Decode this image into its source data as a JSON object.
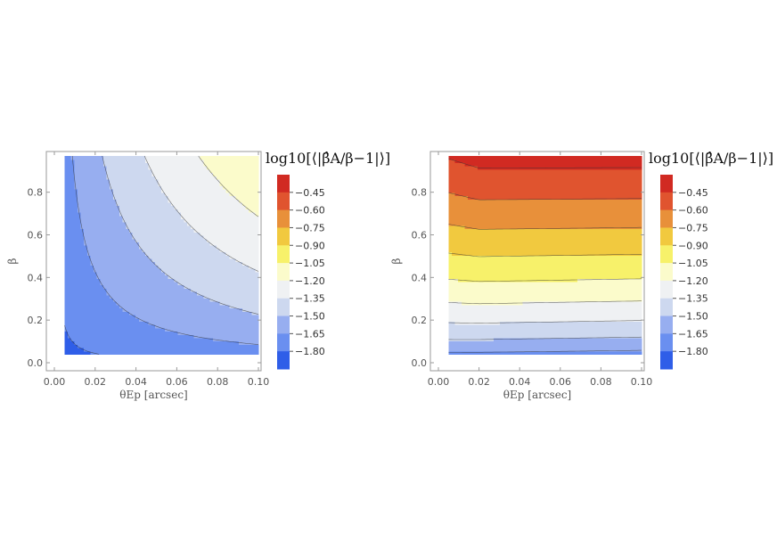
{
  "chart_data": [
    {
      "type": "contour",
      "panel": "left",
      "xlabel": "θEp [arcsec]",
      "ylabel": "β",
      "xlim": [
        0.0,
        0.1
      ],
      "ylim": [
        0.0,
        0.97
      ],
      "x_ticks": [
        "0.00",
        "0.02",
        "0.04",
        "0.06",
        "0.08",
        "0.10"
      ],
      "y_ticks": [
        "0.0",
        "0.2",
        "0.4",
        "0.6",
        "0.8"
      ],
      "data_domain": {
        "x": [
          0.005,
          0.1
        ],
        "y": [
          0.04,
          0.97
        ]
      },
      "colorbar": {
        "title": "log10[⟨|β̂A/β−1|⟩]",
        "levels": [
          "-0.45",
          "-0.60",
          "-0.75",
          "-0.90",
          "-1.05",
          "-1.20",
          "-1.35",
          "-1.50",
          "-1.65",
          "-1.80"
        ],
        "colors": [
          "#d12a22",
          "#e0542f",
          "#e8903a",
          "#f1c93f",
          "#f7f16a",
          "#fbfbcb",
          "#eff1f3",
          "#cdd8ef",
          "#97aef0",
          "#6a8ff0",
          "#2f5ee8"
        ]
      },
      "contour_levels": [
        -1.8,
        -1.65,
        -1.5,
        -1.35,
        -1.2,
        -1.05,
        -0.9,
        -0.75,
        -0.6,
        -0.45
      ]
    },
    {
      "type": "contour",
      "panel": "right",
      "xlabel": "θEp [arcsec]",
      "ylabel": "β",
      "xlim": [
        0.0,
        0.1
      ],
      "ylim": [
        0.0,
        0.97
      ],
      "x_ticks": [
        "0.00",
        "0.02",
        "0.04",
        "0.06",
        "0.08",
        "0.10"
      ],
      "y_ticks": [
        "0.0",
        "0.2",
        "0.4",
        "0.6",
        "0.8"
      ],
      "data_domain": {
        "x": [
          0.005,
          0.1
        ],
        "y": [
          0.04,
          0.97
        ]
      },
      "colorbar": {
        "title": "log10[⟨|β̂A/β−1|⟩]",
        "levels": [
          "-0.45",
          "-0.60",
          "-0.75",
          "-0.90",
          "-1.05",
          "-1.20",
          "-1.35",
          "-1.50",
          "-1.65",
          "-1.80"
        ],
        "colors": [
          "#d12a22",
          "#e0542f",
          "#e8903a",
          "#f1c93f",
          "#f7f16a",
          "#fbfbcb",
          "#eff1f3",
          "#cdd8ef",
          "#97aef0",
          "#6a8ff0",
          "#2f5ee8"
        ]
      },
      "contour_levels": [
        -1.8,
        -1.65,
        -1.5,
        -1.35,
        -1.2,
        -1.05,
        -0.9,
        -0.75,
        -0.6,
        -0.45
      ]
    }
  ]
}
